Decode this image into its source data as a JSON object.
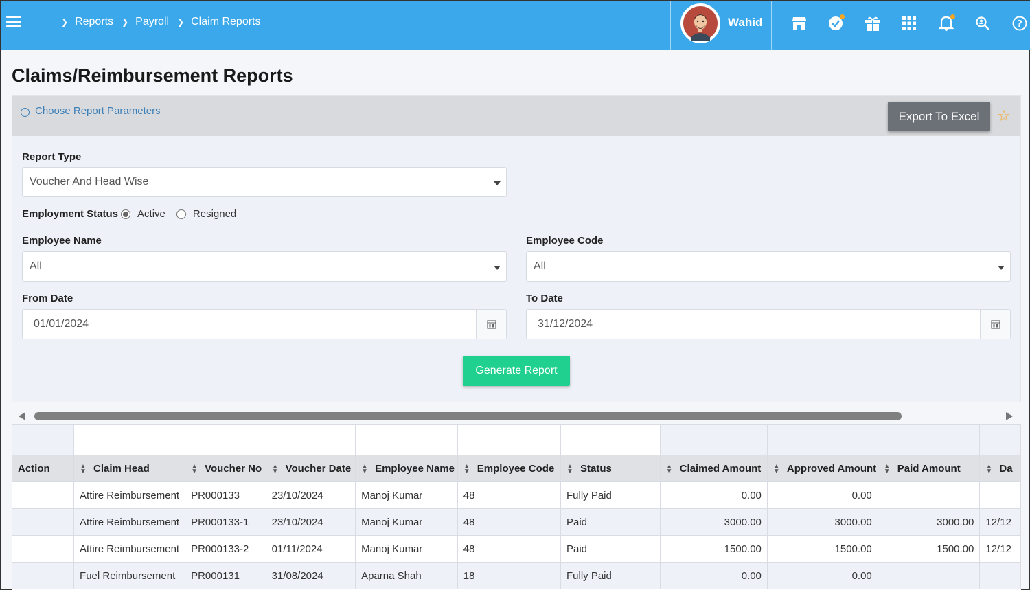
{
  "breadcrumb": [
    "Reports",
    "Payroll",
    "Claim Reports"
  ],
  "user": {
    "name": "Wahid"
  },
  "header_icons": [
    "store-icon",
    "verified-badge-icon",
    "gift-icon",
    "grid-apps-icon",
    "bell-icon",
    "search-person-icon",
    "help-icon"
  ],
  "page": {
    "title": "Claims/Reimbursement Reports"
  },
  "params": {
    "link_label": "Choose Report Parameters",
    "export_label": "Export To Excel",
    "report_type_label": "Report Type",
    "report_type_value": "Voucher And Head Wise",
    "employment_status_label": "Employment Status",
    "status_options": [
      "Active",
      "Resigned"
    ],
    "status_selected": "Active",
    "employee_name_label": "Employee Name",
    "employee_name_value": "All",
    "employee_code_label": "Employee Code",
    "employee_code_value": "All",
    "from_date_label": "From Date",
    "from_date_value": "01/01/2024",
    "to_date_label": "To Date",
    "to_date_value": "31/12/2024",
    "generate_label": "Generate Report"
  },
  "table": {
    "columns": [
      "Action",
      "Claim Head",
      "Voucher No",
      "Voucher Date",
      "Employee Name",
      "Employee Code",
      "Status",
      "Claimed Amount",
      "Approved Amount",
      "Paid Amount",
      "Da"
    ],
    "rows": [
      [
        "",
        "Attire Reimbursement",
        "PR000133",
        "23/10/2024",
        "Manoj Kumar",
        "48",
        "Fully Paid",
        "0.00",
        "0.00",
        "",
        ""
      ],
      [
        "",
        "Attire Reimbursement",
        "PR000133-1",
        "23/10/2024",
        "Manoj Kumar",
        "48",
        "Paid",
        "3000.00",
        "3000.00",
        "3000.00",
        "12/12"
      ],
      [
        "",
        "Attire Reimbursement",
        "PR000133-2",
        "01/11/2024",
        "Manoj Kumar",
        "48",
        "Paid",
        "1500.00",
        "1500.00",
        "1500.00",
        "12/12"
      ],
      [
        "",
        "Fuel Reimbursement",
        "PR000131",
        "31/08/2024",
        "Aparna Shah",
        "18",
        "Fully Paid",
        "0.00",
        "0.00",
        "",
        ""
      ]
    ]
  },
  "colors": {
    "header_bg": "#3aa8ea",
    "export_bg": "#6c7077",
    "generate_bg": "#20d08f",
    "star": "#f5a623"
  }
}
